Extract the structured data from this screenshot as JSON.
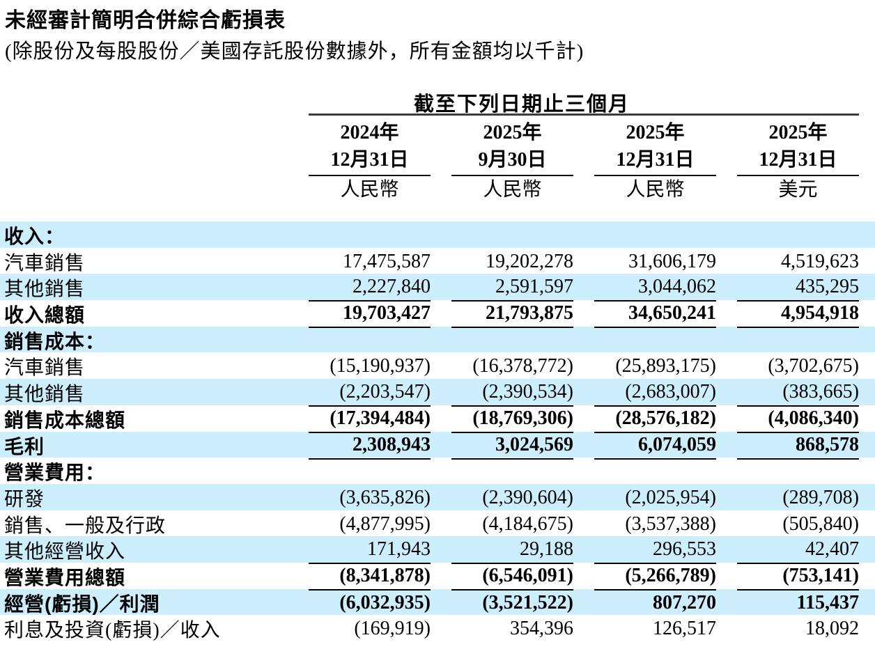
{
  "title": "未經審計簡明合併綜合虧損表",
  "subtitle": "(除股份及每股股份／美國存託股份數據外，所有金額均以千計)",
  "colors": {
    "stripe": "#cdeefc",
    "rule": "#000000",
    "text": "#000000"
  },
  "table": {
    "span_header": "截至下列日期止三個月",
    "columns": [
      {
        "year": "2024年",
        "date": "12月31日",
        "currency": "人民幣"
      },
      {
        "year": "2025年",
        "date": "9月30日",
        "currency": "人民幣"
      },
      {
        "year": "2025年",
        "date": "12月31日",
        "currency": "人民幣"
      },
      {
        "year": "2025年",
        "date": "12月31日",
        "currency": "美元"
      }
    ],
    "rows": [
      {
        "label": "收入：",
        "values": null,
        "bold": true,
        "stripe": true,
        "rule_below": false
      },
      {
        "label": "汽車銷售",
        "values": [
          "17,475,587",
          "19,202,278",
          "31,606,179",
          "4,519,623"
        ],
        "bold": false,
        "stripe": false,
        "rule_below": false
      },
      {
        "label": "其他銷售",
        "values": [
          "2,227,840",
          "2,591,597",
          "3,044,062",
          "435,295"
        ],
        "bold": false,
        "stripe": true,
        "rule_below": true
      },
      {
        "label": "收入總額",
        "values": [
          "19,703,427",
          "21,793,875",
          "34,650,241",
          "4,954,918"
        ],
        "bold": true,
        "stripe": false,
        "rule_below": true
      },
      {
        "label": "銷售成本：",
        "values": null,
        "bold": true,
        "stripe": true,
        "rule_below": false
      },
      {
        "label": "汽車銷售",
        "values": [
          "(15,190,937)",
          "(16,378,772)",
          "(25,893,175)",
          "(3,702,675)"
        ],
        "bold": false,
        "stripe": false,
        "rule_below": false
      },
      {
        "label": "其他銷售",
        "values": [
          "(2,203,547)",
          "(2,390,534)",
          "(2,683,007)",
          "(383,665)"
        ],
        "bold": false,
        "stripe": true,
        "rule_below": true
      },
      {
        "label": "銷售成本總額",
        "values": [
          "(17,394,484)",
          "(18,769,306)",
          "(28,576,182)",
          "(4,086,340)"
        ],
        "bold": true,
        "stripe": false,
        "rule_below": true
      },
      {
        "label": "毛利",
        "values": [
          "2,308,943",
          "3,024,569",
          "6,074,059",
          "868,578"
        ],
        "bold": true,
        "stripe": true,
        "rule_below": true
      },
      {
        "label": "營業費用：",
        "values": null,
        "bold": true,
        "stripe": false,
        "rule_below": false
      },
      {
        "label": "研發",
        "values": [
          "(3,635,826)",
          "(2,390,604)",
          "(2,025,954)",
          "(289,708)"
        ],
        "bold": false,
        "stripe": true,
        "rule_below": false
      },
      {
        "label": "銷售、一般及行政",
        "values": [
          "(4,877,995)",
          "(4,184,675)",
          "(3,537,388)",
          "(505,840)"
        ],
        "bold": false,
        "stripe": false,
        "rule_below": false
      },
      {
        "label": "其他經營收入",
        "values": [
          "171,943",
          "29,188",
          "296,553",
          "42,407"
        ],
        "bold": false,
        "stripe": true,
        "rule_below": true
      },
      {
        "label": "營業費用總額",
        "values": [
          "(8,341,878)",
          "(6,546,091)",
          "(5,266,789)",
          "(753,141)"
        ],
        "bold": true,
        "stripe": false,
        "rule_below": true
      },
      {
        "label": "經營(虧損)／利潤",
        "values": [
          "(6,032,935)",
          "(3,521,522)",
          "807,270",
          "115,437"
        ],
        "bold": true,
        "stripe": true,
        "rule_below": false
      },
      {
        "label": "利息及投資(虧損)／收入",
        "values": [
          "(169,919)",
          "354,396",
          "126,517",
          "18,092"
        ],
        "bold": false,
        "stripe": false,
        "rule_below": false
      }
    ]
  }
}
